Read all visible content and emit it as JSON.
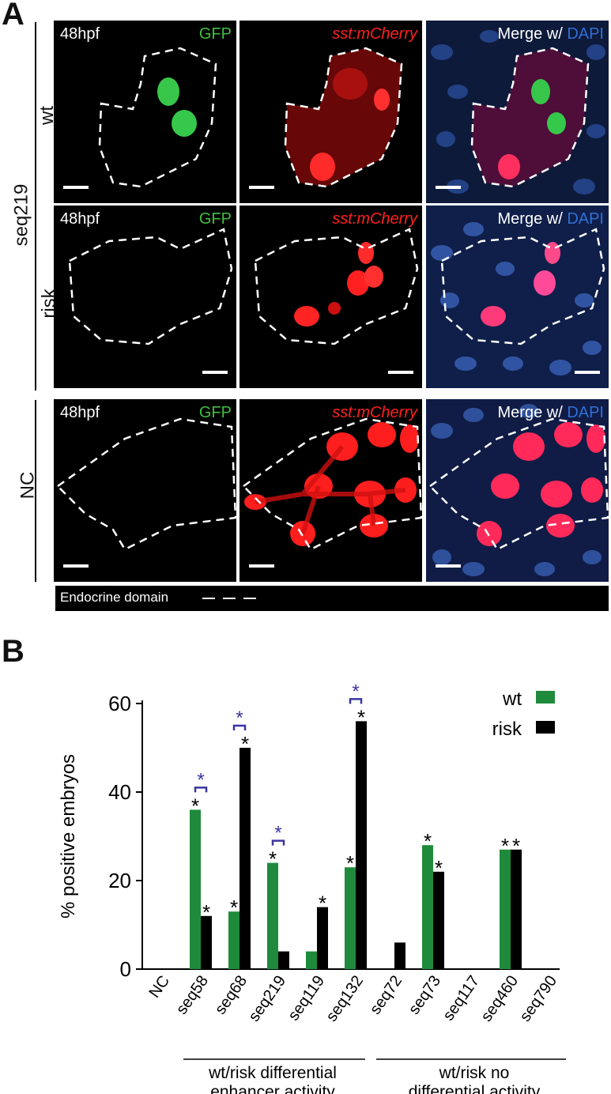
{
  "panel_a": {
    "letter": "A",
    "group_label": "seq219",
    "rows": [
      {
        "label": "wt",
        "stage": "48hpf",
        "ch1": "GFP",
        "ch2": "sst:mCherry",
        "merge_prefix": "Merge w/ ",
        "merge_dapi": "DAPI"
      },
      {
        "label": "risk",
        "stage": "48hpf",
        "ch1": "GFP",
        "ch2": "sst:mCherry",
        "merge_prefix": "Merge w/ ",
        "merge_dapi": "DAPI"
      },
      {
        "label": "NC",
        "stage": "48hpf",
        "ch1": "GFP",
        "ch2": "sst:mCherry",
        "merge_prefix": "Merge w/ ",
        "merge_dapi": "DAPI"
      }
    ],
    "legend": "Endocrine domain",
    "colors": {
      "gfp": "#3fbf3f",
      "mcherry": "#ff2020",
      "dapi": "#2f6fd6"
    }
  },
  "panel_b": {
    "letter": "B",
    "group1_label_line1": "wt/risk differential",
    "group1_label_line2": "enhancer activity",
    "group2_label_line1": "wt/risk no",
    "group2_label_line2": "differential activity"
  },
  "chart_data": {
    "type": "bar",
    "ylabel": "% positive embryos",
    "ylim": [
      0,
      60
    ],
    "yticks": [
      0,
      20,
      40,
      60
    ],
    "categories": [
      "NC",
      "seq58",
      "seq68",
      "seq219",
      "seq119",
      "seq132",
      "seq72",
      "seq73",
      "seq117",
      "seq460",
      "seq790"
    ],
    "series": [
      {
        "name": "wt",
        "color": "#1f8a3c",
        "values": [
          0,
          36,
          13,
          24,
          4,
          23,
          0,
          28,
          0,
          27,
          0
        ]
      },
      {
        "name": "risk",
        "color": "#000000",
        "values": [
          0,
          12,
          50,
          4,
          14,
          56,
          6,
          22,
          0,
          27,
          0
        ]
      }
    ],
    "significance_marker": "*",
    "wt_significant": [
      "seq58",
      "seq68",
      "seq219",
      "seq132",
      "seq73",
      "seq460"
    ],
    "risk_significant": [
      "seq58",
      "seq68",
      "seq119",
      "seq132",
      "seq73",
      "seq460"
    ],
    "pairwise_significant": [
      "seq58",
      "seq68",
      "seq219",
      "seq132"
    ],
    "pairwise_color": "#3a35a0",
    "legend_position": "top-right"
  }
}
